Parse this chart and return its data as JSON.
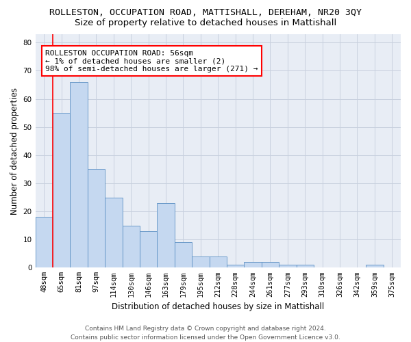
{
  "title": "ROLLESTON, OCCUPATION ROAD, MATTISHALL, DEREHAM, NR20 3QY",
  "subtitle": "Size of property relative to detached houses in Mattishall",
  "xlabel": "Distribution of detached houses by size in Mattishall",
  "ylabel": "Number of detached properties",
  "categories": [
    "48sqm",
    "65sqm",
    "81sqm",
    "97sqm",
    "114sqm",
    "130sqm",
    "146sqm",
    "163sqm",
    "179sqm",
    "195sqm",
    "212sqm",
    "228sqm",
    "244sqm",
    "261sqm",
    "277sqm",
    "293sqm",
    "310sqm",
    "326sqm",
    "342sqm",
    "359sqm",
    "375sqm"
  ],
  "values": [
    18,
    55,
    66,
    35,
    25,
    15,
    13,
    23,
    9,
    4,
    4,
    1,
    2,
    2,
    1,
    1,
    0,
    0,
    0,
    1,
    0
  ],
  "bar_color": "#c5d8f0",
  "bar_edge_color": "#5a8fc3",
  "annotation_text": "ROLLESTON OCCUPATION ROAD: 56sqm\n← 1% of detached houses are smaller (2)\n98% of semi-detached houses are larger (271) →",
  "annotation_box_color": "white",
  "annotation_box_edge": "red",
  "ylim": [
    0,
    83
  ],
  "yticks": [
    0,
    10,
    20,
    30,
    40,
    50,
    60,
    70,
    80
  ],
  "grid_color": "#c8d0de",
  "bg_color": "#e8edf5",
  "footer1": "Contains HM Land Registry data © Crown copyright and database right 2024.",
  "footer2": "Contains public sector information licensed under the Open Government Licence v3.0.",
  "title_fontsize": 9.5,
  "subtitle_fontsize": 9.5,
  "axis_label_fontsize": 8.5,
  "tick_fontsize": 7.5,
  "annotation_fontsize": 8,
  "footer_fontsize": 6.5
}
